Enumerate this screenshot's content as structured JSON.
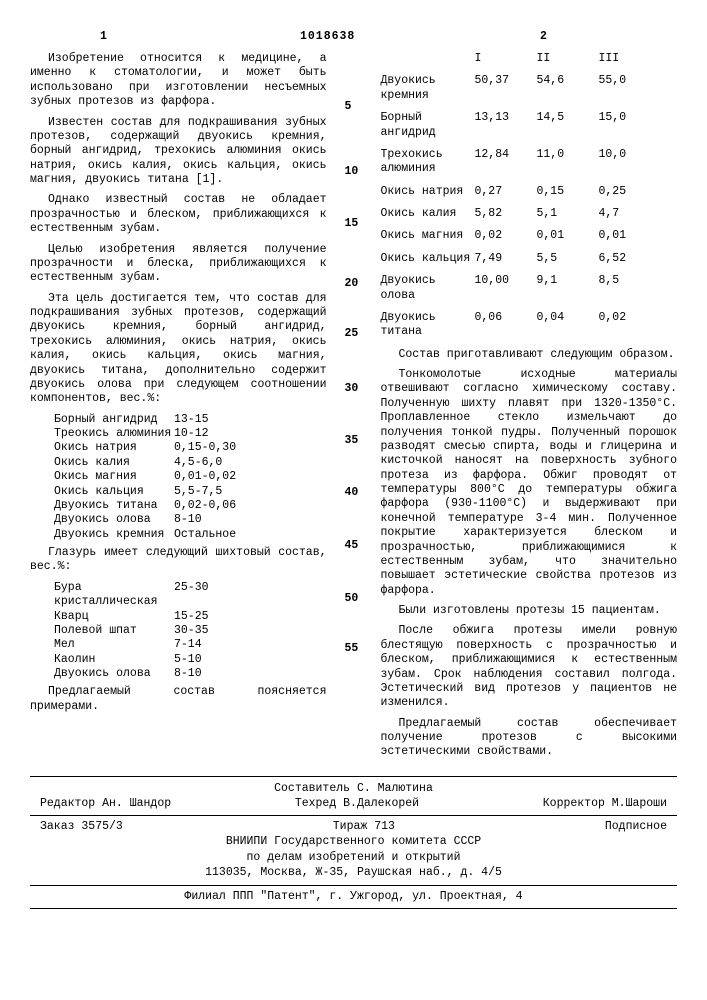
{
  "top": {
    "num_left": "1",
    "doc_id": "1018638",
    "num_right": "2"
  },
  "left": {
    "p1": "Изобретение относится к медицине, а именно к стоматологии, и может быть использовано при изготовлении несъемных зубных протезов из фарфора.",
    "p2": "Известен состав для подкрашивания зубных протезов, содержащий двуокись кремния, борный ангидрид, трехокись алюминия окись натрия, окись калия, окись кальция, окись магния, двуокись титана [1].",
    "p3": "Однако известный состав не обладает прозрачностью и блеском, приближающихся к естественным зубам.",
    "p4": "Целью изобретения является получение прозрачности и блеска, приближающихся к естественным зубам.",
    "p5": "Эта цель достигается тем, что состав для подкрашивания зубных протезов, содержащий двуокись кремния, борный ангидрид, трехокись алюминия, окись натрия, окись калия, окись кальция, окись магния, двуокись титана, дополнительно содержит двуокись олова при следующем соотношении компонентов, вес.%:",
    "mix1": [
      {
        "l": "Борный ангидрид",
        "v": "13-15"
      },
      {
        "l": "Треокись алюминия",
        "v": "10-12"
      },
      {
        "l": "Окись натрия",
        "v": "0,15-0,30"
      },
      {
        "l": "Окись калия",
        "v": "4,5-6,0"
      },
      {
        "l": "Окись магния",
        "v": "0,01-0,02"
      },
      {
        "l": "Окись кальция",
        "v": "5,5-7,5"
      },
      {
        "l": "Двуокись титана",
        "v": "0,02-0,06"
      },
      {
        "l": "Двуокись олова",
        "v": "8-10"
      },
      {
        "l": "Двуокись кремния",
        "v": "Остальное"
      }
    ],
    "p6": "Глазурь имеет следующий шихтовый состав, вес.%:",
    "mix2": [
      {
        "l": "Бура кристаллическая",
        "v": "25-30"
      },
      {
        "l": "Кварц",
        "v": "15-25"
      },
      {
        "l": "Полевой шпат",
        "v": "30-35"
      },
      {
        "l": "Мел",
        "v": "7-14"
      },
      {
        "l": "Каолин",
        "v": "5-10"
      },
      {
        "l": "Двуокись олова",
        "v": "8-10"
      }
    ],
    "p7": "Предлагаемый состав поясняется примерами."
  },
  "linenums": [
    "5",
    "10",
    "15",
    "20",
    "25",
    "30",
    "35",
    "40",
    "45",
    "50",
    "55"
  ],
  "right": {
    "table": {
      "header": [
        "I",
        "II",
        "III"
      ],
      "rows": [
        {
          "l": "Двуокись кремния",
          "c": [
            "50,37",
            "54,6",
            "55,0"
          ]
        },
        {
          "l": "Борный ангидрид",
          "c": [
            "13,13",
            "14,5",
            "15,0"
          ]
        },
        {
          "l": "Трехокись алюминия",
          "c": [
            "12,84",
            "11,0",
            "10,0"
          ]
        },
        {
          "l": "Окись натрия",
          "c": [
            "0,27",
            "0,15",
            "0,25"
          ]
        },
        {
          "l": "Окись калия",
          "c": [
            "5,82",
            "5,1",
            "4,7"
          ]
        },
        {
          "l": "Окись магния",
          "c": [
            "0,02",
            "0,01",
            "0,01"
          ]
        },
        {
          "l": "Окись кальция",
          "c": [
            "7,49",
            "5,5",
            "6,52"
          ]
        },
        {
          "l": "Двуокись олова",
          "c": [
            "10,00",
            "9,1",
            "8,5"
          ]
        },
        {
          "l": "Двуокись титана",
          "c": [
            "0,06",
            "0,04",
            "0,02"
          ]
        }
      ]
    },
    "p1": "Состав приготавливают следующим образом.",
    "p2": "Тонкомолотые исходные материалы отвешивают согласно химическому составу. Полученную шихту плавят при 1320-1350°С. Проплавленное стекло измельчают до получения тонкой пудры. Полученный порошок разводят смесью спирта, воды и глицерина и кисточкой наносят на поверхность зубного протеза из фарфора. Обжиг проводят от температуры 800°С до температуры обжига фарфора (930-1100°С) и выдерживают при конечной температуре 3-4 мин. Полученное покрытие характеризуется блеском и прозрачностью, приближающимися к естественным зубам, что значительно повышает эстетические свойства протезов из фарфора.",
    "p3": "Были изготовлены протезы 15 пациентам.",
    "p4": "После обжига протезы имели ровную блестящую поверхность с прозрачностью и блеском, приближающимися к естественным зубам. Срок наблюдения составил полгода. Эстетический вид протезов у пациентов не изменился.",
    "p5": "Предлагаемый состав обеспечивает получение протезов с высокими эстетическими свойствами."
  },
  "footer": {
    "row1": {
      "a": "Составитель С. Малютина"
    },
    "row2": {
      "a": "Редактор Ан. Шандор",
      "b": "Техред В.Далекорей",
      "c": "Корректор М.Шароши"
    },
    "row3": {
      "a": "Заказ 3575/3",
      "b": "Тираж 713",
      "c": "Подписное"
    },
    "row4": "ВНИИПИ Государственного комитета СССР",
    "row5": "по делам изобретений и открытий",
    "row6": "113035, Москва, Ж-35, Раушская наб., д. 4/5",
    "row7": "Филиал ППП \"Патент\", г. Ужгород, ул. Проектная, 4"
  }
}
